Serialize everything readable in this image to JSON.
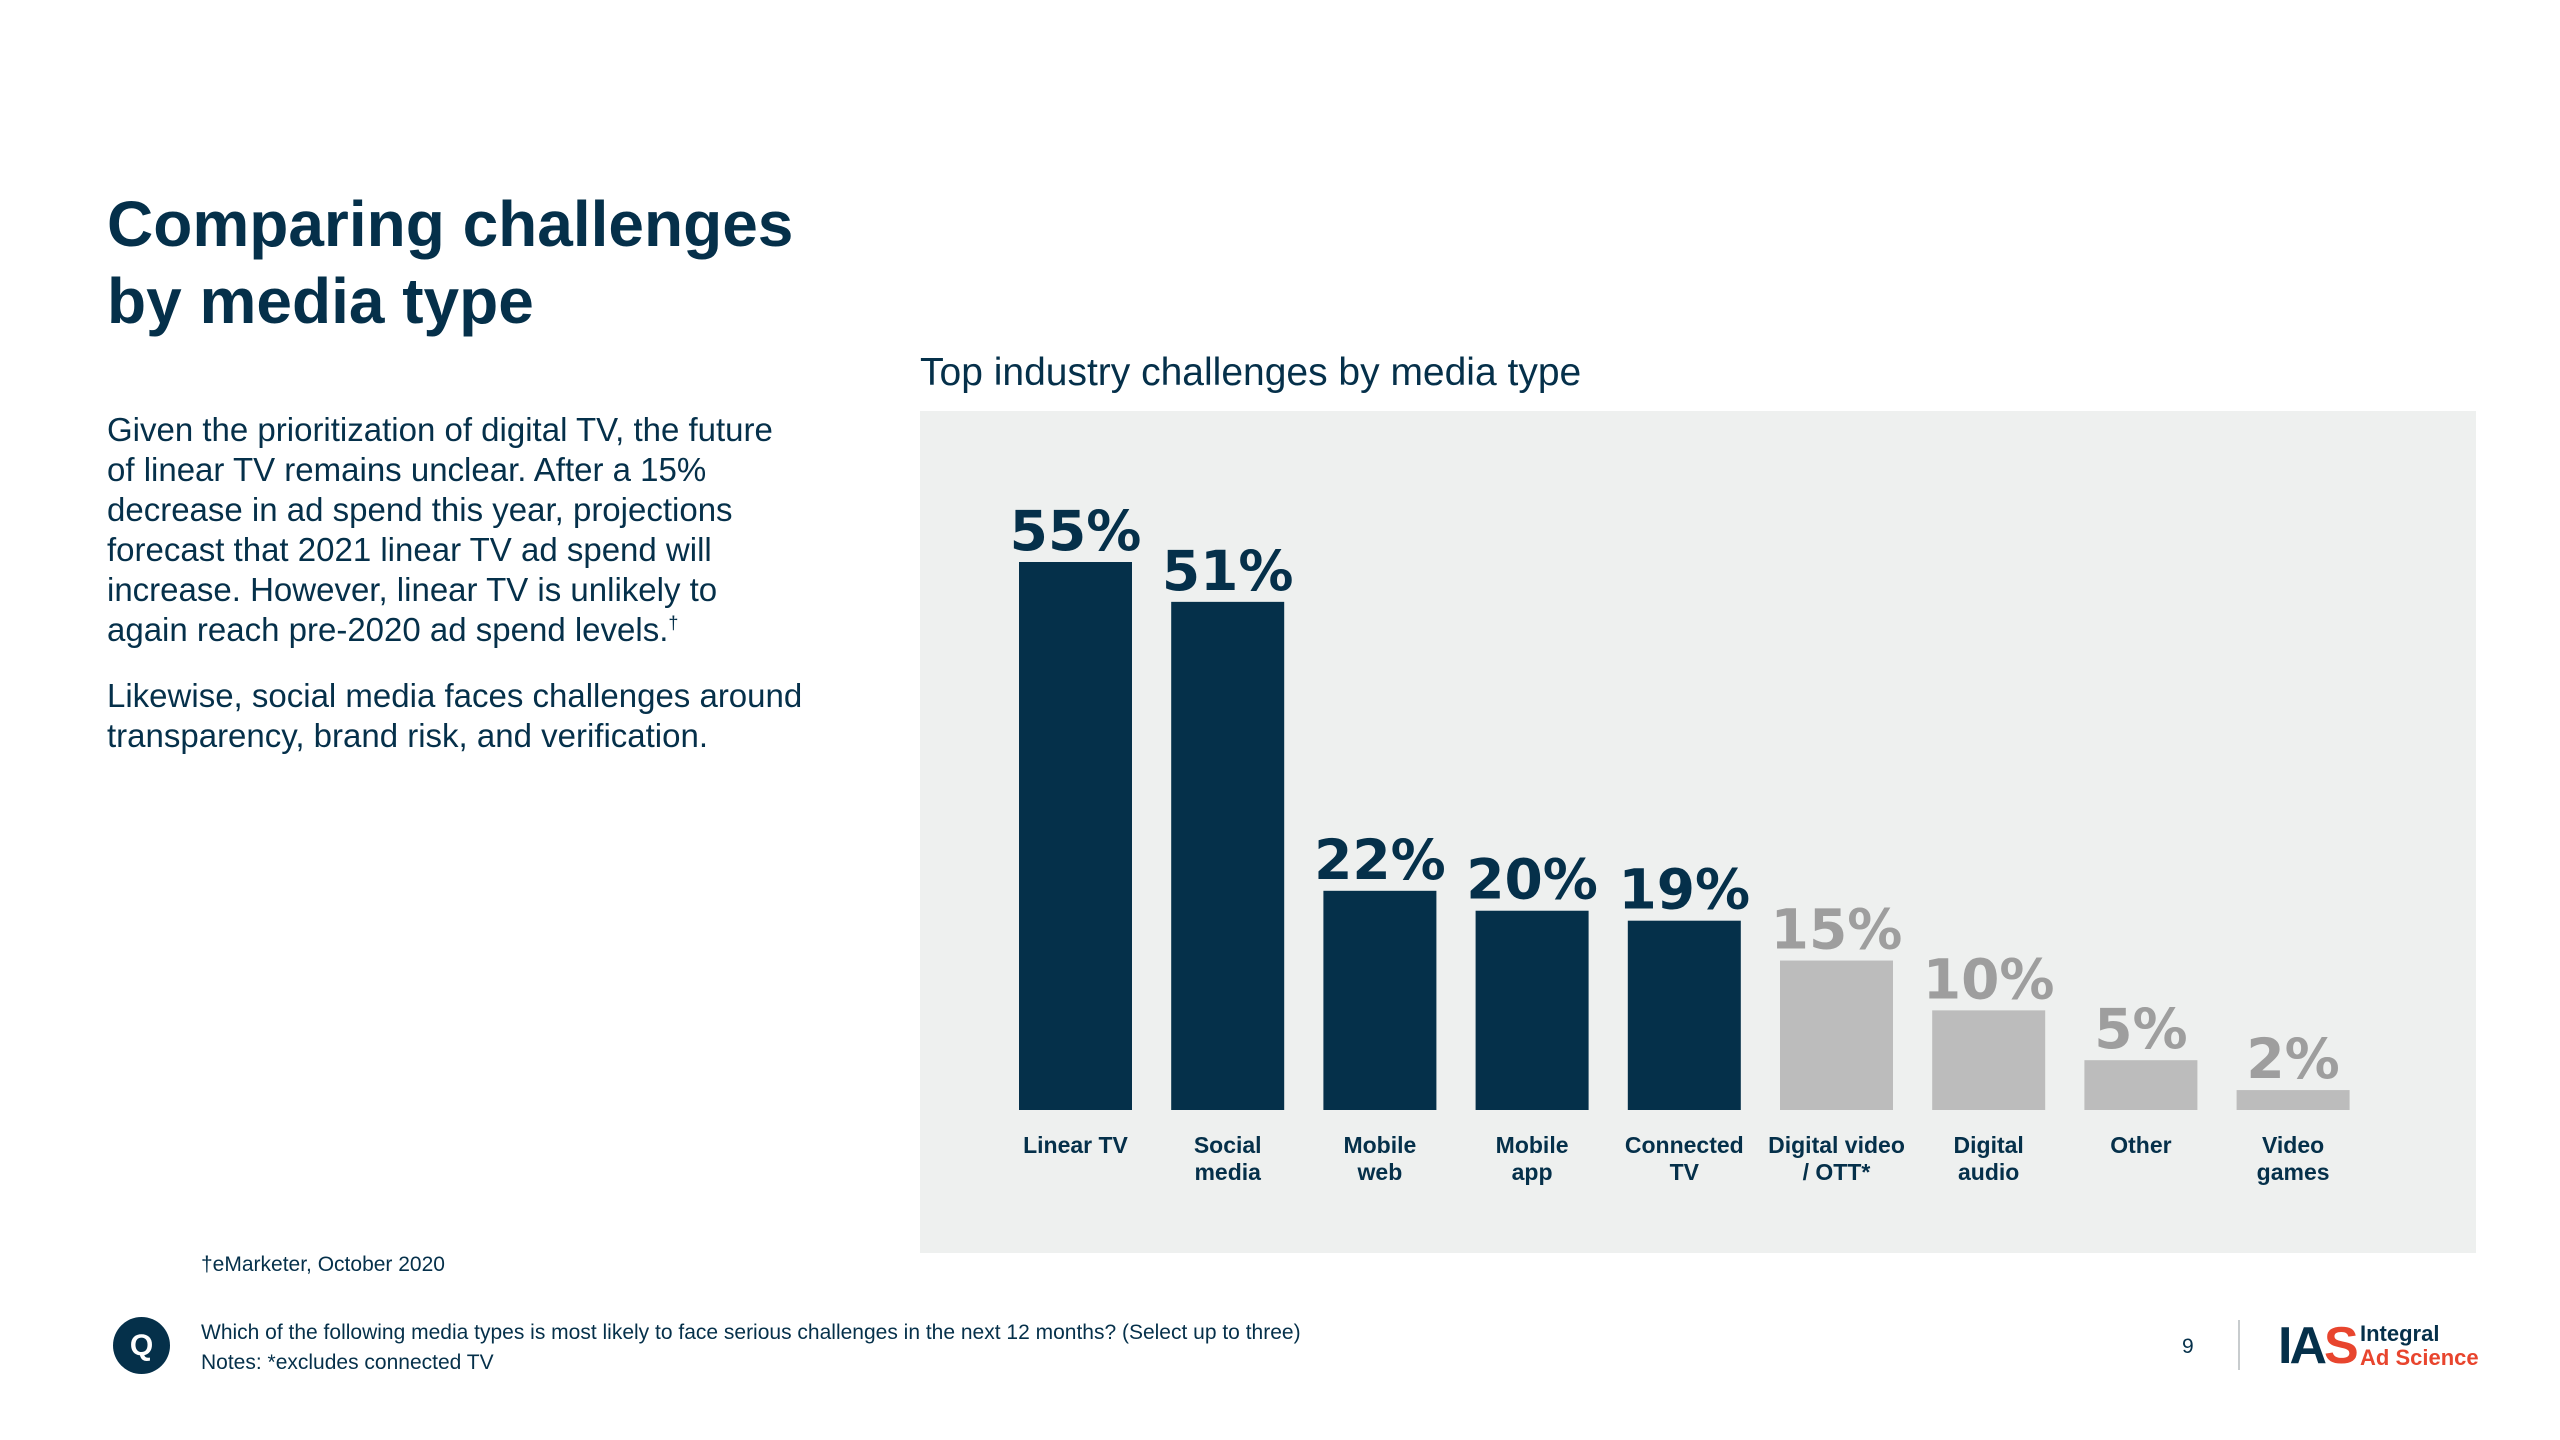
{
  "slide": {
    "title_line1": "Comparing challenges",
    "title_line2": "by media type",
    "paragraph1": "Given the prioritization of digital TV, the future of linear TV remains unclear. After a 15% decrease in ad spend this year, projections forecast that 2021 linear TV ad spend will increase. However, linear TV is unlikely to again reach pre-2020 ad spend levels.",
    "paragraph1_mark": "†",
    "paragraph2": "Likewise, social media faces challenges around transparency, brand risk, and verification.",
    "source_note": "†eMarketer, October 2020",
    "q_badge": "Q",
    "question": "Which of the following media types is most likely to face serious challenges in the next 12 months? (Select up to three)",
    "notes": "Notes: *excludes connected TV",
    "page_number": "9"
  },
  "logo": {
    "mark_ia": "IA",
    "mark_s": "S",
    "word1": "Integral",
    "word2": "Ad Science"
  },
  "colors": {
    "navy": "#05304a",
    "gray_bar": "#bcbcbc",
    "gray_text": "#9e9e9e",
    "panel": "#eef0ef",
    "accent_red": "#e8452e"
  },
  "chart_data": {
    "type": "bar",
    "title": "Top industry challenges by media type",
    "categories": [
      [
        "Linear TV"
      ],
      [
        "Social",
        "media"
      ],
      [
        "Mobile",
        "web"
      ],
      [
        "Mobile",
        "app"
      ],
      [
        "Connected",
        "TV"
      ],
      [
        "Digital video",
        "/ OTT*"
      ],
      [
        "Digital",
        "audio"
      ],
      [
        "Other"
      ],
      [
        "Video",
        "games"
      ]
    ],
    "values": [
      55,
      51,
      22,
      20,
      19,
      15,
      10,
      5,
      2
    ],
    "value_labels": [
      "55%",
      "51%",
      "22%",
      "20%",
      "19%",
      "15%",
      "10%",
      "5%",
      "2%"
    ],
    "highlighted": [
      true,
      true,
      true,
      true,
      true,
      false,
      false,
      false,
      false
    ],
    "unit": "%",
    "xlabel": "",
    "ylabel": "",
    "ylim": [
      0,
      55
    ],
    "grid": false
  }
}
